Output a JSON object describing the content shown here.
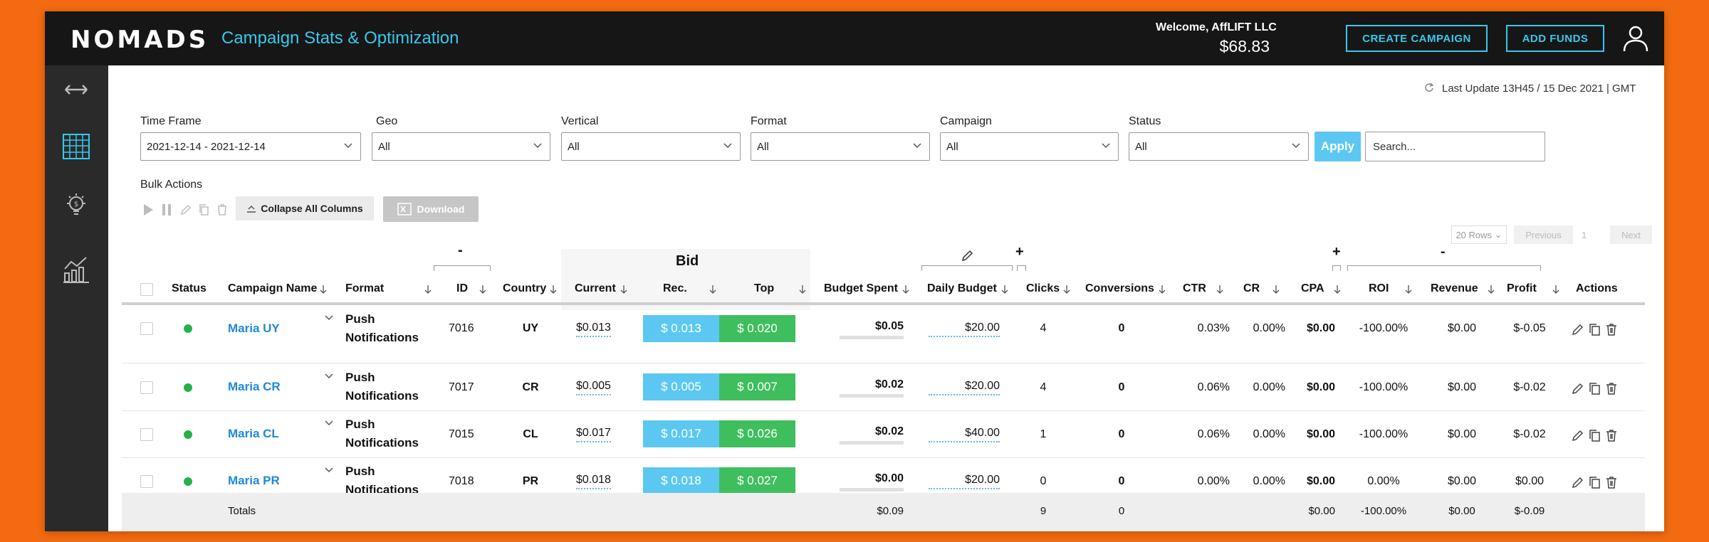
{
  "header": {
    "logo": "NOMADS",
    "title": "Campaign Stats & Optimization",
    "welcome": "Welcome, AffLIFT LLC",
    "balance": "$68.83",
    "create_campaign": "CREATE CAMPAIGN",
    "add_funds": "ADD FUNDS"
  },
  "sidebar": {
    "items": [
      {
        "icon": "expand-arrows-icon",
        "active": false
      },
      {
        "icon": "table-icon",
        "active": true
      },
      {
        "icon": "lightbulb-dollar-icon",
        "active": false
      },
      {
        "icon": "analytics-chart-icon",
        "active": false
      }
    ]
  },
  "last_update": "Last Update 13H45 / 15 Dec 2021 | GMT",
  "filters": {
    "time_frame": {
      "label": "Time Frame",
      "value": "2021-12-14 - 2021-12-14"
    },
    "geo": {
      "label": "Geo",
      "value": "All"
    },
    "vertical": {
      "label": "Vertical",
      "value": "All"
    },
    "format": {
      "label": "Format",
      "value": "All"
    },
    "campaign": {
      "label": "Campaign",
      "value": "All"
    },
    "status": {
      "label": "Status",
      "value": "All"
    },
    "apply": "Apply",
    "search_placeholder": "Search..."
  },
  "bulk": {
    "label": "Bulk Actions",
    "collapse": "Collapse All Columns",
    "download": "Download"
  },
  "pagination": {
    "rows": "20 Rows",
    "previous": "Previous",
    "page": "1",
    "next": "Next"
  },
  "groups": {
    "id_group": "-",
    "bid": "Bid",
    "daily_plus": "+",
    "cpa_plus": "+",
    "roi_group": "-"
  },
  "columns": {
    "status": "Status",
    "campaign_name": "Campaign Name",
    "format": "Format",
    "id": "ID",
    "country": "Country",
    "current": "Current",
    "rec": "Rec.",
    "top": "Top",
    "budget_spent": "Budget Spent",
    "daily_budget": "Daily Budget",
    "clicks": "Clicks",
    "conversions": "Conversions",
    "ctr": "CTR",
    "cr": "CR",
    "cpa": "CPA",
    "roi": "ROI",
    "revenue": "Revenue",
    "profit": "Profit",
    "actions": "Actions"
  },
  "rows": [
    {
      "name": "Maria UY",
      "format1": "Push",
      "format2": "Notifications",
      "id": "7016",
      "country": "UY",
      "current": "$0.013",
      "rec": "$ 0.013",
      "top": "$ 0.020",
      "spent": "$0.05",
      "daily": "$20.00",
      "clicks": "4",
      "conversions": "0",
      "ctr": "0.03%",
      "cr": "0.00%",
      "cpa": "$0.00",
      "roi": "-100.00%",
      "revenue": "$0.00",
      "profit": "$-0.05"
    },
    {
      "name": "Maria CR",
      "format1": "Push",
      "format2": "Notifications",
      "id": "7017",
      "country": "CR",
      "current": "$0.005",
      "rec": "$ 0.005",
      "top": "$ 0.007",
      "spent": "$0.02",
      "daily": "$20.00",
      "clicks": "4",
      "conversions": "0",
      "ctr": "0.06%",
      "cr": "0.00%",
      "cpa": "$0.00",
      "roi": "-100.00%",
      "revenue": "$0.00",
      "profit": "$-0.02"
    },
    {
      "name": "Maria CL",
      "format1": "Push",
      "format2": "Notifications",
      "id": "7015",
      "country": "CL",
      "current": "$0.017",
      "rec": "$ 0.017",
      "top": "$ 0.026",
      "spent": "$0.02",
      "daily": "$40.00",
      "clicks": "1",
      "conversions": "0",
      "ctr": "0.06%",
      "cr": "0.00%",
      "cpa": "$0.00",
      "roi": "-100.00%",
      "revenue": "$0.00",
      "profit": "$-0.02"
    },
    {
      "name": "Maria PR",
      "format1": "Push",
      "format2": "Notifications",
      "id": "7018",
      "country": "PR",
      "current": "$0.018",
      "rec": "$ 0.018",
      "top": "$ 0.027",
      "spent": "$0.00",
      "daily": "$20.00",
      "clicks": "0",
      "conversions": "0",
      "ctr": "0.00%",
      "cr": "0.00%",
      "cpa": "$0.00",
      "roi": "0.00%",
      "revenue": "$0.00",
      "profit": "$0.00"
    }
  ],
  "totals": {
    "label": "Totals",
    "spent": "$0.09",
    "clicks": "9",
    "conversions": "0",
    "cpa": "$0.00",
    "roi": "-100.00%",
    "revenue": "$0.00",
    "profit": "$-0.09"
  },
  "colors": {
    "background": "#f36a10",
    "accent": "#37c8ec",
    "rec": "#5cc8f2",
    "top": "#3fbe5e",
    "link": "#1d8ad8",
    "status_active": "#26b04c"
  }
}
